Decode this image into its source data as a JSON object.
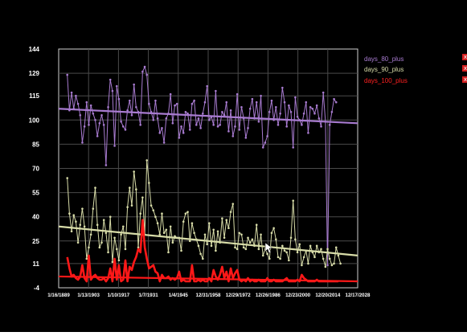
{
  "chart_data": {
    "type": "line",
    "title": "",
    "xlabel": "",
    "ylabel": "",
    "x_start_year": 1889,
    "x_tick_labels": [
      "1/16/1889",
      "1/13/1903",
      "1/10/1917",
      "1/7/1931",
      "1/4/1945",
      "12/31/1958",
      "12/29/1972",
      "12/26/1986",
      "12/23/2000",
      "12/20/2014",
      "12/17/2028"
    ],
    "xlim": [
      1889,
      2028
    ],
    "ylim": [
      -4,
      144
    ],
    "y_ticks": [
      -4,
      11,
      25,
      40,
      55,
      70,
      85,
      100,
      115,
      129,
      144
    ],
    "grid": true,
    "legend_position": "right",
    "series": [
      {
        "name": "days_80_plus",
        "color": "#a87bd0",
        "x_start": 1893,
        "values": [
          128,
          106,
          117,
          107,
          115,
          110,
          103,
          86,
          96,
          111,
          97,
          109,
          104,
          100,
          90,
          98,
          103,
          97,
          72,
          108,
          125,
          118,
          84,
          121,
          113,
          99,
          96,
          94,
          106,
          112,
          103,
          122,
          108,
          105,
          97,
          130,
          133,
          128,
          110,
          105,
          100,
          112,
          101,
          92,
          95,
          86,
          101,
          104,
          116,
          98,
          109,
          110,
          89,
          96,
          92,
          105,
          104,
          94,
          110,
          112,
          97,
          101,
          95,
          104,
          111,
          121,
          100,
          102,
          97,
          118,
          96,
          97,
          105,
          103,
          111,
          93,
          106,
          90,
          96,
          116,
          94,
          108,
          101,
          89,
          95,
          107,
          113,
          101,
          111,
          99,
          115,
          83,
          86,
          90,
          105,
          112,
          100,
          108,
          97,
          104,
          120,
          111,
          96,
          109,
          105,
          83,
          114,
          102,
          100,
          97,
          104,
          111,
          92,
          108,
          107,
          104,
          109,
          101,
          96,
          117,
          99,
          10,
          97,
          105,
          113,
          111
        ],
        "trend": [
          107,
          98
        ]
      },
      {
        "name": "days_90_plus",
        "color": "#d8dca8",
        "x_start": 1893,
        "values": [
          64,
          42,
          31,
          41,
          37,
          24,
          35,
          45,
          34,
          14,
          21,
          29,
          45,
          58,
          35,
          21,
          24,
          38,
          30,
          18,
          40,
          12,
          27,
          20,
          13,
          29,
          34,
          20,
          46,
          58,
          47,
          68,
          57,
          21,
          42,
          52,
          29,
          75,
          61,
          47,
          44,
          40,
          36,
          29,
          42,
          30,
          32,
          18,
          34,
          24,
          28,
          27,
          27,
          19,
          37,
          42,
          43,
          25,
          36,
          30,
          26,
          22,
          17,
          14,
          29,
          23,
          36,
          22,
          32,
          19,
          31,
          24,
          39,
          27,
          38,
          33,
          43,
          48,
          21,
          20,
          30,
          29,
          21,
          20,
          27,
          24,
          26,
          22,
          35,
          20,
          29,
          16,
          20,
          17,
          14,
          30,
          33,
          26,
          15,
          14,
          22,
          19,
          18,
          13,
          27,
          50,
          26,
          18,
          23,
          10,
          15,
          19,
          11,
          22,
          18,
          15,
          22,
          18,
          20,
          14,
          9,
          20,
          14,
          10,
          11,
          21,
          16,
          11
        ],
        "trend": [
          34,
          16
        ]
      },
      {
        "name": "days_100_plus",
        "color": "#ff1818",
        "x_start": 1893,
        "values": [
          15,
          8,
          3,
          4,
          2,
          1,
          3,
          10,
          2,
          0,
          16,
          1,
          3,
          4,
          2,
          1,
          1,
          2,
          0,
          2,
          8,
          0,
          14,
          1,
          10,
          0,
          1,
          13,
          0,
          9,
          7,
          12,
          15,
          20,
          18,
          38,
          21,
          14,
          8,
          9,
          10,
          6,
          5,
          0,
          4,
          2,
          2,
          3,
          1,
          2,
          1,
          2,
          6,
          0,
          1,
          0,
          0,
          0,
          10,
          0,
          0,
          1,
          0,
          1,
          0,
          0,
          2,
          0,
          7,
          3,
          1,
          4,
          9,
          2,
          6,
          0,
          8,
          2,
          5,
          7,
          1,
          0,
          1,
          0,
          2,
          0,
          1,
          0,
          0,
          1,
          0,
          0,
          0,
          2,
          0,
          0,
          1,
          0,
          0,
          0,
          0,
          1,
          2,
          0,
          0,
          0,
          0,
          1,
          0,
          4,
          2,
          1,
          0,
          0,
          0,
          0,
          1,
          0,
          0,
          0,
          0,
          0,
          0,
          0,
          0,
          0,
          0
        ],
        "trend": [
          3,
          0
        ]
      }
    ]
  },
  "legend": {
    "items": [
      {
        "label": "days_80_plus",
        "color": "#a87bd0"
      },
      {
        "label": "days_90_plus",
        "color": "#d8dca8"
      },
      {
        "label": "days_100_plus",
        "color": "#ff2020"
      }
    ],
    "remove_icon": "x"
  }
}
